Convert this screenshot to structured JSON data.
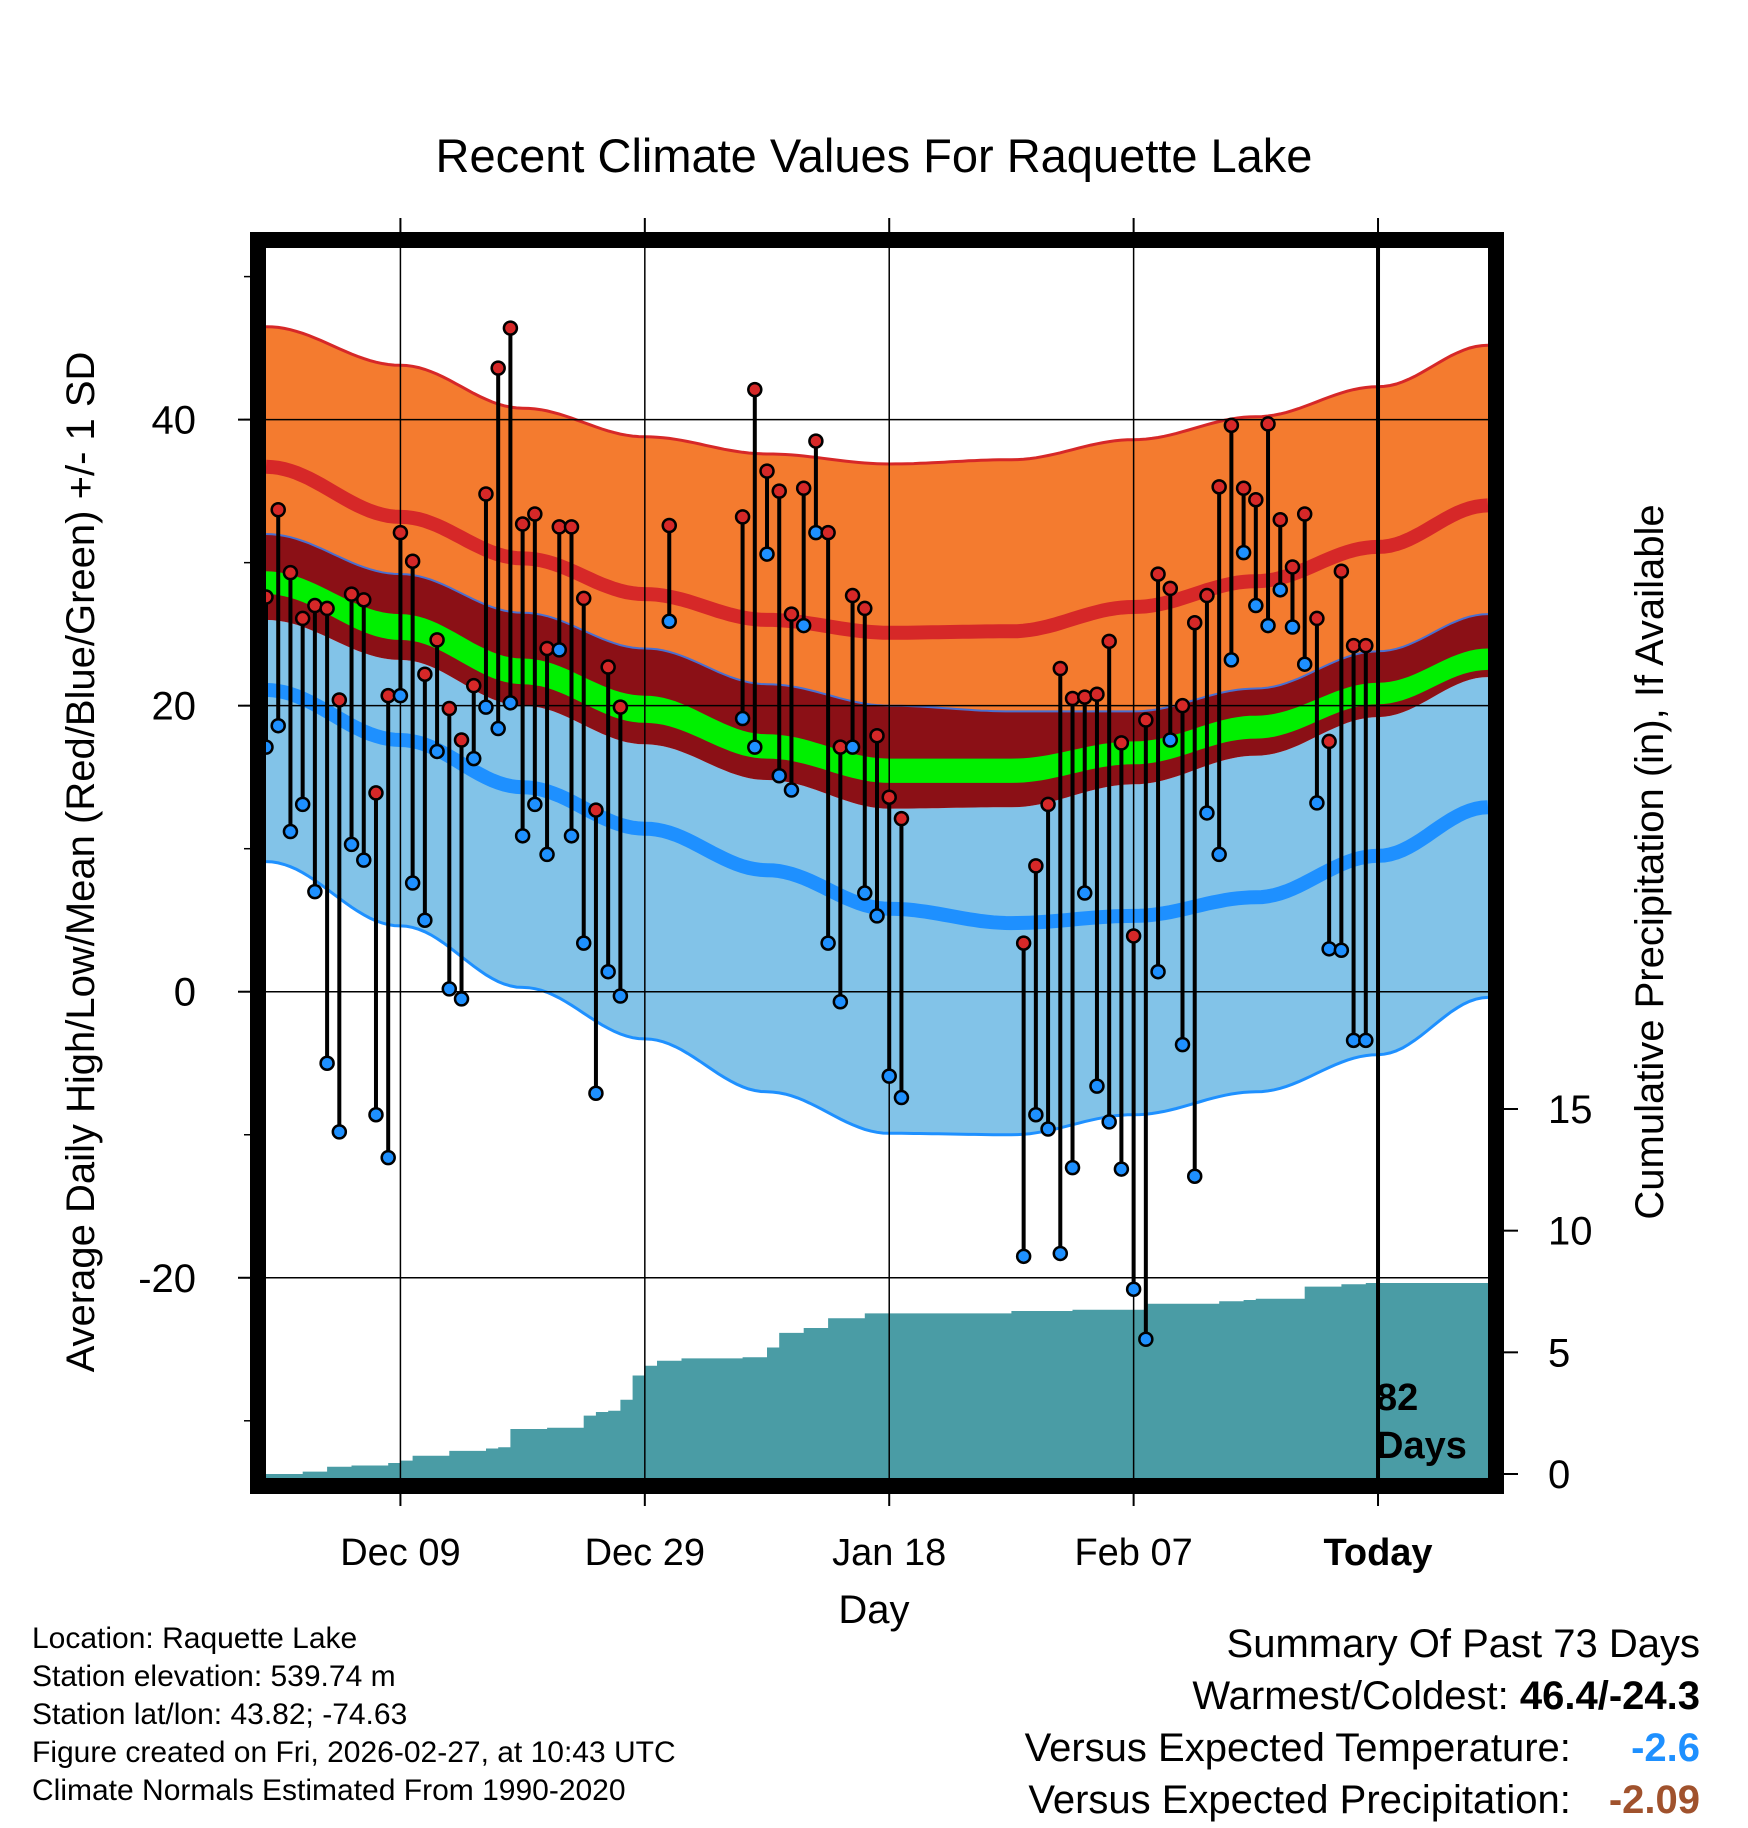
{
  "chart_data": {
    "type": "line",
    "title": "Recent Climate Values For Raquette Lake",
    "xlabel": "Day",
    "ylabel": "Average Daily High/Low/Mean (Red/Blue/Green) +/- 1 SD",
    "y2label": "Cumulative Precipitation (in), If Available",
    "x_range_days": [
      -91,
      9
    ],
    "ylim": [
      -34,
      52
    ],
    "y_ticks": [
      -20,
      0,
      20,
      40
    ],
    "y2_ticks": [
      0,
      5,
      10,
      15
    ],
    "y2_range_in_tick_units": [
      0,
      15
    ],
    "x_tick_days": [
      -80,
      -60,
      -40,
      -20,
      0
    ],
    "x_tick_labels": [
      "Dec 09",
      "Dec 29",
      "Jan 18",
      "Feb 07",
      "Today"
    ],
    "today_label": "82\nDays",
    "today_label_line1": "82",
    "today_label_line2": "Days",
    "colors": {
      "high_band": "#f47b2f",
      "high_band_edge": "#d62828",
      "high_mean_line": "#d62828",
      "overlap_band": "#8b1016",
      "mean_band": "#00f000",
      "low_band": "#82c3e8",
      "low_band_edge": "#1e90ff",
      "low_mean_line": "#1e90ff",
      "precip": "#4a9ca5",
      "high_marker": "#d62828",
      "low_marker": "#1e90ff",
      "temp_anomaly_value": "#1e90ff",
      "precip_anomaly_value": "#a0522d"
    },
    "normals": {
      "days": [
        -91,
        -80,
        -70,
        -60,
        -50,
        -40,
        -30,
        -20,
        -10,
        0,
        9
      ],
      "high_upper": [
        46.5,
        43.8,
        40.8,
        38.8,
        37.6,
        36.9,
        37.2,
        38.6,
        40.2,
        42.3,
        45.2
      ],
      "high_mean": [
        36.7,
        33.2,
        30.3,
        27.8,
        26.0,
        25.1,
        25.2,
        26.9,
        28.7,
        31.1,
        34.0
      ],
      "high_lower": [
        32.0,
        29.2,
        26.5,
        24.0,
        21.5,
        20.0,
        19.6,
        19.6,
        21.2,
        23.8,
        26.4
      ],
      "mean_upper": [
        29.4,
        26.4,
        23.3,
        20.7,
        18.0,
        16.3,
        16.3,
        17.5,
        19.3,
        21.6,
        24.0
      ],
      "mean_lower": [
        27.8,
        24.6,
        21.5,
        18.8,
        16.3,
        14.6,
        14.6,
        15.9,
        17.7,
        20.1,
        22.5
      ],
      "low_upper": [
        26.0,
        23.2,
        20.0,
        17.3,
        14.8,
        12.8,
        12.9,
        14.5,
        16.5,
        19.2,
        22.0
      ],
      "low_mean": [
        21.1,
        17.6,
        14.3,
        11.4,
        8.5,
        5.8,
        4.8,
        5.3,
        6.6,
        9.5,
        12.9
      ],
      "low_lower": [
        9.1,
        4.6,
        0.3,
        -3.3,
        -7.0,
        -9.9,
        -10.0,
        -8.6,
        -7.0,
        -4.4,
        -0.4
      ]
    },
    "series": [
      {
        "name": "Daily High",
        "days": [
          -91,
          -90,
          -89,
          -88,
          -87,
          -86,
          -85,
          -84,
          -83,
          -82,
          -81,
          -80,
          -79,
          -78,
          -77,
          -76,
          -75,
          -74,
          -73,
          -72,
          -71,
          -70,
          -69,
          -68,
          -67,
          -66,
          -65,
          -64,
          -63,
          -62,
          -58,
          -52,
          -51,
          -50,
          -49,
          -48,
          -47,
          -46,
          -45,
          -44,
          -43,
          -42,
          -41,
          -40,
          -39,
          -29,
          -28,
          -27,
          -26,
          -25,
          -24,
          -23,
          -22,
          -21,
          -20,
          -19,
          -18,
          -17,
          -16,
          -15,
          -14,
          -13,
          -12,
          -11,
          -10,
          -9,
          -8,
          -7,
          -6,
          -5,
          -4,
          -3,
          -2,
          -1
        ],
        "values": [
          27.6,
          33.7,
          29.3,
          26.1,
          27.0,
          26.8,
          20.4,
          27.8,
          27.4,
          13.9,
          20.7,
          32.1,
          30.1,
          22.2,
          24.6,
          19.8,
          17.6,
          21.4,
          34.8,
          43.6,
          46.4,
          32.7,
          33.4,
          24.0,
          32.5,
          32.5,
          27.5,
          12.7,
          22.7,
          19.9,
          32.6,
          33.2,
          42.1,
          36.4,
          35.0,
          26.4,
          35.2,
          38.5,
          32.1,
          17.1,
          27.7,
          26.8,
          17.9,
          13.6,
          12.1,
          3.4,
          8.8,
          13.1,
          22.6,
          20.5,
          20.6,
          20.8,
          24.5,
          17.4,
          3.9,
          19.0,
          29.2,
          28.2,
          20.0,
          25.8,
          27.7,
          35.3,
          39.6,
          35.2,
          34.4,
          39.7,
          33.0,
          29.7,
          33.4,
          26.1,
          17.5,
          29.4,
          24.2,
          24.2
        ]
      },
      {
        "name": "Daily Low",
        "days": [
          -91,
          -90,
          -89,
          -88,
          -87,
          -86,
          -85,
          -84,
          -83,
          -82,
          -81,
          -80,
          -79,
          -78,
          -77,
          -76,
          -75,
          -74,
          -73,
          -72,
          -71,
          -70,
          -69,
          -68,
          -67,
          -66,
          -65,
          -64,
          -63,
          -62,
          -58,
          -52,
          -51,
          -50,
          -49,
          -48,
          -47,
          -46,
          -45,
          -44,
          -43,
          -42,
          -41,
          -40,
          -39,
          -29,
          -28,
          -27,
          -26,
          -25,
          -24,
          -23,
          -22,
          -21,
          -20,
          -19,
          -18,
          -17,
          -16,
          -15,
          -14,
          -13,
          -12,
          -11,
          -10,
          -9,
          -8,
          -7,
          -6,
          -5,
          -4,
          -3,
          -2,
          -1
        ],
        "values": [
          17.1,
          18.6,
          11.2,
          13.1,
          7.0,
          -5.0,
          -9.8,
          10.3,
          9.2,
          -8.6,
          -11.6,
          20.7,
          7.6,
          5.0,
          16.8,
          0.2,
          -0.5,
          16.3,
          19.9,
          18.4,
          20.2,
          10.9,
          13.1,
          9.6,
          23.9,
          10.9,
          3.4,
          -7.1,
          1.4,
          -0.3,
          25.9,
          19.1,
          17.1,
          30.6,
          15.1,
          14.1,
          25.6,
          32.1,
          3.4,
          -0.7,
          17.1,
          6.9,
          5.3,
          -5.9,
          -7.4,
          -18.5,
          -8.6,
          -9.6,
          -18.3,
          -12.3,
          6.9,
          -6.6,
          -9.1,
          -12.4,
          -20.8,
          -24.3,
          1.4,
          17.6,
          -3.7,
          -12.9,
          12.5,
          9.6,
          23.2,
          30.7,
          27.0,
          25.6,
          28.1,
          25.5,
          22.9,
          13.2,
          3.0,
          2.9,
          -3.4,
          -3.4
        ]
      },
      {
        "name": "Cumulative Precipitation",
        "days": [
          -91,
          -88,
          -86,
          -84,
          -81,
          -80,
          -79,
          -76,
          -73,
          -72,
          -71,
          -68,
          -65,
          -64,
          -63,
          -62,
          -61,
          -60,
          -59,
          -57,
          -52,
          -50,
          -49,
          -47,
          -45,
          -42,
          -40,
          -30,
          -25,
          -20,
          -19,
          -15,
          -13,
          -11,
          -10,
          -6,
          -3,
          -1,
          9
        ],
        "values": [
          0.0,
          0.1,
          0.3,
          0.35,
          0.45,
          0.55,
          0.75,
          0.95,
          1.05,
          1.1,
          1.85,
          1.9,
          2.4,
          2.55,
          2.6,
          3.05,
          4.05,
          4.45,
          4.65,
          4.75,
          4.8,
          5.2,
          5.8,
          6.0,
          6.4,
          6.6,
          6.6,
          6.7,
          6.75,
          6.75,
          7.0,
          7.0,
          7.1,
          7.15,
          7.2,
          7.7,
          7.8,
          7.85,
          7.85
        ]
      }
    ]
  },
  "footer": {
    "location": "Location: Raquette Lake",
    "elevation": "Station elevation: 539.74 m",
    "latlon": "Station lat/lon: 43.82; -74.63",
    "created": "Figure created on Fri, 2026-02-27, at 10:43 UTC",
    "normals": "Climate Normals Estimated From 1990-2020"
  },
  "summary": {
    "title": "Summary Of Past 73 Days",
    "warmest_coldest_label": "Warmest/Coldest:",
    "warmest_coldest_value": "46.4/-24.3",
    "temp_label": "Versus Expected Temperature:",
    "temp_value": "-2.6",
    "precip_label": "Versus Expected Precipitation:",
    "precip_value": "-2.09"
  }
}
